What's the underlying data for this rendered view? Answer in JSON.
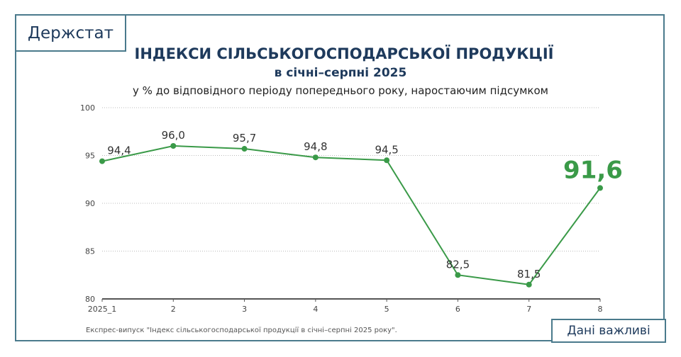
{
  "logo": "Держстат",
  "badge": "Дані важливі",
  "source": "Експрес-випуск \"Індекс сільськогосподарської продукції в січні–серпні 2025 року\".",
  "chart_data": {
    "type": "line",
    "title": "ІНДЕКСИ СІЛЬСЬКОГОСПОДАРСЬКОЇ ПРОДУКЦІЇ",
    "subtitle": "в січні–серпні 2025",
    "ylabel": "у % до відповідного періоду попереднього року, наростаючим підсумком",
    "categories": [
      "2025_1",
      "2",
      "3",
      "4",
      "5",
      "6",
      "7",
      "8"
    ],
    "values": [
      94.4,
      96.0,
      95.7,
      94.8,
      94.5,
      82.5,
      81.5,
      91.6
    ],
    "labels": [
      "94,4",
      "96,0",
      "95,7",
      "94,8",
      "94,5",
      "82,5",
      "81,5",
      "91,6"
    ],
    "ylim": [
      80,
      100
    ],
    "yticks": [
      "80",
      "85",
      "90",
      "95",
      "100"
    ],
    "grid": true,
    "line_color": "#3a9a48",
    "highlight_color": "#3a9a48"
  }
}
